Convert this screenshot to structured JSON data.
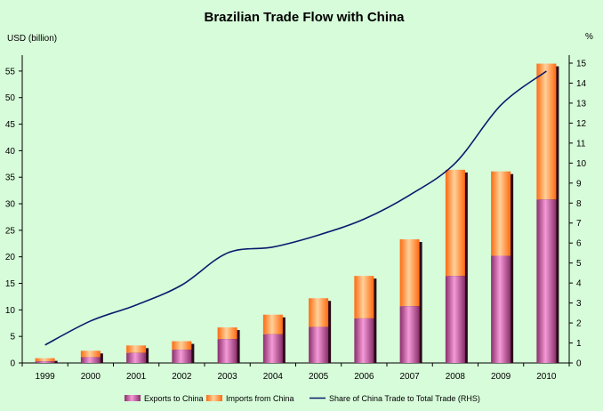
{
  "chart_data": {
    "type": "bar",
    "title": "Brazilian Trade Flow with China",
    "ylabel_left": "USD (billion)",
    "ylabel_right": "%",
    "categories": [
      "1999",
      "2000",
      "2001",
      "2002",
      "2003",
      "2004",
      "2005",
      "2006",
      "2007",
      "2008",
      "2009",
      "2010"
    ],
    "stacked": true,
    "ylim_left": [
      0,
      58
    ],
    "yticks_left": [
      0,
      5,
      10,
      15,
      20,
      25,
      30,
      35,
      40,
      45,
      50,
      55
    ],
    "ylim_right": [
      0,
      15.4
    ],
    "yticks_right": [
      0,
      1,
      2,
      3,
      4,
      5,
      6,
      7,
      8,
      9,
      10,
      11,
      12,
      13,
      14,
      15
    ],
    "series": [
      {
        "name": "Exports to China",
        "kind": "bar",
        "axis": "left",
        "color": "#d86fb8",
        "values": [
          0.3,
          1.1,
          1.9,
          2.5,
          4.5,
          5.4,
          6.8,
          8.4,
          10.7,
          16.4,
          20.2,
          30.8
        ]
      },
      {
        "name": "Imports from China",
        "kind": "bar",
        "axis": "left",
        "color": "#ffa24a",
        "values": [
          0.6,
          1.2,
          1.4,
          1.6,
          2.2,
          3.7,
          5.4,
          8.0,
          12.6,
          20.0,
          15.9,
          25.6
        ]
      },
      {
        "name": "Share of China Trade to Total Trade (RHS)",
        "kind": "line",
        "axis": "right",
        "color": "#0a1a6e",
        "values": [
          0.9,
          2.1,
          2.9,
          3.9,
          5.5,
          5.8,
          6.4,
          7.2,
          8.4,
          10.0,
          12.9,
          14.6
        ]
      }
    ],
    "legend_position": "bottom",
    "grid": false
  }
}
